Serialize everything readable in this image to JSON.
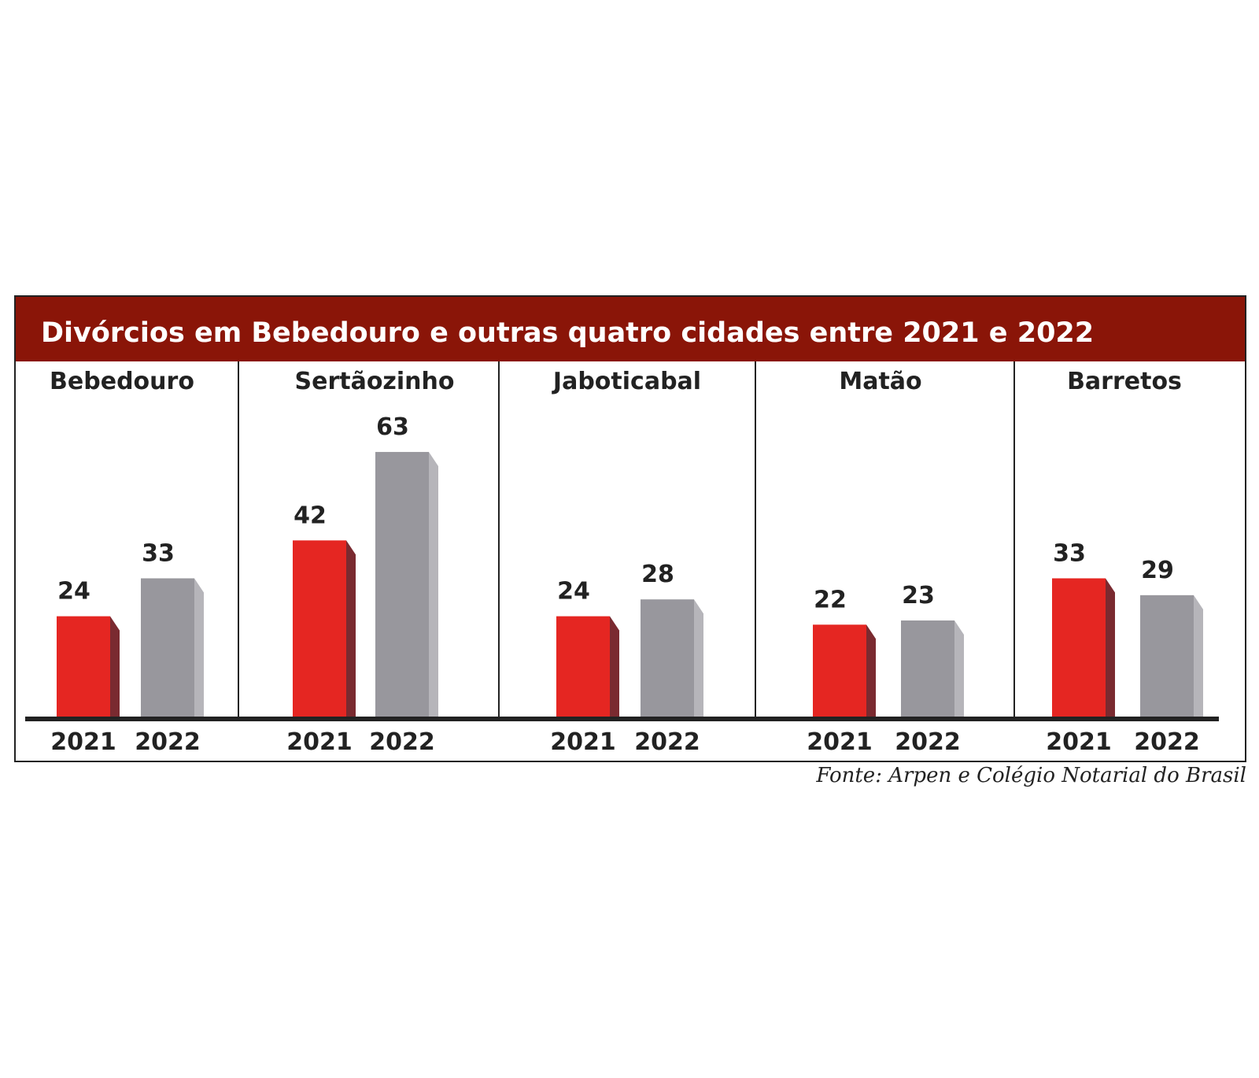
{
  "chart_data": {
    "type": "bar",
    "title": "Divórcios em Bebedouro e outras quatro cidades entre 2021 e 2022",
    "source": "Fonte: Arpen e Colégio Notarial do Brasil",
    "series_names": [
      "2021",
      "2022"
    ],
    "categories": [
      "Bebedouro",
      "Sertãozinho",
      "Jaboticabal",
      "Matão",
      "Barretos"
    ],
    "series": [
      {
        "name": "2021",
        "values": [
          24,
          42,
          24,
          22,
          33
        ]
      },
      {
        "name": "2022",
        "values": [
          33,
          63,
          28,
          23,
          29
        ]
      }
    ],
    "value_labels": [
      [
        "24",
        "33"
      ],
      [
        "42",
        "63"
      ],
      [
        "24",
        "28"
      ],
      [
        "22",
        "23"
      ],
      [
        "33",
        "29"
      ]
    ],
    "ylim": [
      0,
      63
    ],
    "grid": false,
    "legend": "none"
  },
  "colors": {
    "header": "#8a1508",
    "bar_2021": "#e52622",
    "bar_2021_side": "#7a2a30",
    "bar_2022": "#98979d",
    "bar_2022_side": "#b6b5ba"
  }
}
